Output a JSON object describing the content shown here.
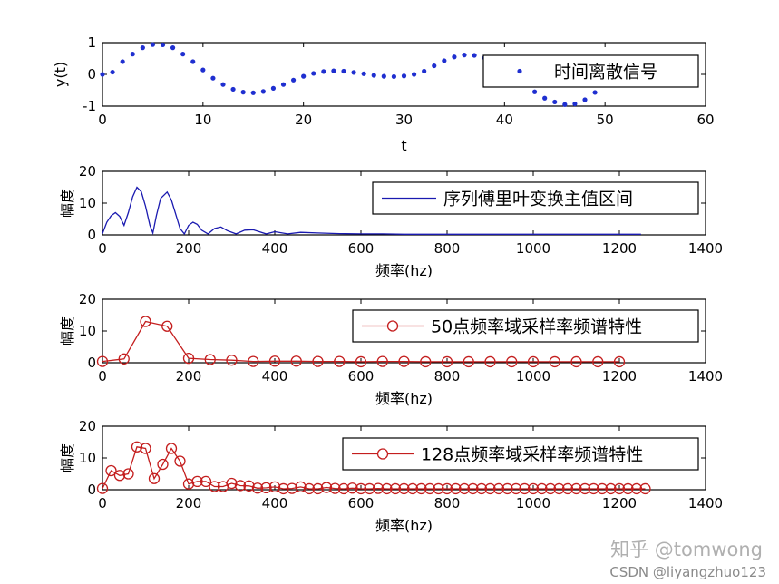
{
  "chart_data": [
    {
      "type": "scatter",
      "marker": "dot",
      "color": "#1f2fd0",
      "xlabel": "t",
      "ylabel": "y(t)",
      "xlim": [
        0,
        60
      ],
      "ylim": [
        -1,
        1
      ],
      "xticks": [
        0,
        10,
        20,
        30,
        40,
        50,
        60
      ],
      "yticks": [
        -1,
        0,
        1
      ],
      "legend": {
        "label": "时间离散信号",
        "position": "top-right"
      },
      "series": [
        {
          "name": "时间离散信号",
          "x": [
            0,
            1,
            2,
            3,
            4,
            5,
            6,
            7,
            8,
            9,
            10,
            11,
            12,
            13,
            14,
            15,
            16,
            17,
            18,
            19,
            20,
            21,
            22,
            23,
            24,
            25,
            26,
            27,
            28,
            29,
            30,
            31,
            32,
            33,
            34,
            35,
            36,
            37,
            38,
            39,
            40,
            41,
            42,
            43,
            44,
            45,
            46,
            47,
            48,
            49
          ],
          "y": [
            0.0,
            0.07,
            0.4,
            0.64,
            0.84,
            0.94,
            0.93,
            0.84,
            0.64,
            0.4,
            0.14,
            -0.12,
            -0.32,
            -0.47,
            -0.56,
            -0.58,
            -0.54,
            -0.44,
            -0.32,
            -0.18,
            -0.06,
            0.03,
            0.09,
            0.11,
            0.1,
            0.06,
            0.02,
            -0.03,
            -0.06,
            -0.07,
            -0.05,
            0.0,
            0.1,
            0.27,
            0.43,
            0.55,
            0.61,
            0.6,
            0.52,
            0.36,
            0.12,
            -0.11,
            -0.33,
            -0.55,
            -0.75,
            -0.87,
            -0.95,
            -0.93,
            -0.8,
            -0.57
          ]
        }
      ]
    },
    {
      "type": "line",
      "color": "#1a1ab0",
      "xlabel": "频率(hz)",
      "ylabel": "幅度",
      "xlim": [
        0,
        1400
      ],
      "ylim": [
        0,
        20
      ],
      "xticks": [
        0,
        200,
        400,
        600,
        800,
        1000,
        1200,
        1400
      ],
      "yticks": [
        0,
        10,
        20
      ],
      "legend": {
        "label": "序列傅里叶变换主值区间",
        "position": "top-right"
      },
      "series": [
        {
          "name": "序列傅里叶变换主值区间",
          "x": [
            0,
            10,
            20,
            30,
            40,
            50,
            60,
            70,
            80,
            90,
            100,
            110,
            117,
            125,
            135,
            150,
            160,
            170,
            180,
            190,
            200,
            210,
            220,
            230,
            245,
            260,
            275,
            290,
            310,
            330,
            350,
            380,
            400,
            430,
            460,
            500,
            550,
            600,
            650,
            700,
            800,
            900,
            1000,
            1100,
            1200,
            1250
          ],
          "y": [
            0.4,
            4,
            6,
            7,
            5.8,
            3,
            7,
            12,
            15,
            13.6,
            9,
            3,
            0.6,
            6,
            11.5,
            13.5,
            11,
            6.5,
            2,
            0.3,
            3,
            4,
            3.3,
            1.5,
            0.3,
            2,
            2.5,
            1.3,
            0.3,
            1.5,
            1.6,
            0.3,
            1,
            0.3,
            0.8,
            0.6,
            0.4,
            0.3,
            0.3,
            0.2,
            0.2,
            0.2,
            0.2,
            0.2,
            0.2,
            0.2
          ]
        }
      ]
    },
    {
      "type": "line",
      "marker": "circle",
      "color": "#c41e1e",
      "xlabel": "频率(hz)",
      "ylabel": "幅度",
      "xlim": [
        0,
        1400
      ],
      "ylim": [
        0,
        20
      ],
      "xticks": [
        0,
        200,
        400,
        600,
        800,
        1000,
        1200,
        1400
      ],
      "yticks": [
        0,
        10,
        20
      ],
      "legend": {
        "label": "50点频率域采样率频谱特性",
        "position": "top-right"
      },
      "series": [
        {
          "name": "50点频率域采样率频谱特性",
          "x": [
            0,
            50,
            100,
            150,
            200,
            250,
            300,
            350,
            400,
            450,
            500,
            550,
            600,
            650,
            700,
            750,
            800,
            850,
            900,
            950,
            1000,
            1050,
            1100,
            1150,
            1200
          ],
          "y": [
            0.4,
            1.2,
            13,
            11.5,
            1.4,
            1.0,
            0.8,
            0.4,
            0.5,
            0.5,
            0.4,
            0.4,
            0.3,
            0.4,
            0.4,
            0.3,
            0.3,
            0.3,
            0.3,
            0.3,
            0.3,
            0.3,
            0.3,
            0.3,
            0.3
          ]
        }
      ]
    },
    {
      "type": "line",
      "marker": "circle",
      "color": "#c41e1e",
      "xlabel": "频率(hz)",
      "ylabel": "幅度",
      "xlim": [
        0,
        1400
      ],
      "ylim": [
        0,
        20
      ],
      "xticks": [
        0,
        200,
        400,
        600,
        800,
        1000,
        1200,
        1400
      ],
      "yticks": [
        0,
        10,
        20
      ],
      "legend": {
        "label": "128点频率域采样率频谱特性",
        "position": "top-right"
      },
      "series": [
        {
          "name": "128点频率域采样率频谱特性",
          "x": [
            0,
            20,
            40,
            60,
            80,
            100,
            120,
            140,
            160,
            180,
            200,
            220,
            240,
            260,
            280,
            300,
            320,
            340,
            360,
            380,
            400,
            420,
            440,
            460,
            480,
            500,
            520,
            540,
            560,
            580,
            600,
            620,
            640,
            660,
            680,
            700,
            720,
            740,
            760,
            780,
            800,
            820,
            840,
            860,
            880,
            900,
            920,
            940,
            960,
            980,
            1000,
            1020,
            1040,
            1060,
            1080,
            1100,
            1120,
            1140,
            1160,
            1180,
            1200,
            1220,
            1240,
            1260
          ],
          "y": [
            0.4,
            6,
            4.5,
            5,
            13.5,
            13,
            3.5,
            8,
            13,
            9,
            1.8,
            2.6,
            2.6,
            1,
            1,
            2,
            1.3,
            1.2,
            0.5,
            0.6,
            0.9,
            0.3,
            0.4,
            0.9,
            0.3,
            0.3,
            0.7,
            0.4,
            0.3,
            0.5,
            0.3,
            0.3,
            0.4,
            0.3,
            0.3,
            0.3,
            0.3,
            0.3,
            0.3,
            0.3,
            0.3,
            0.3,
            0.3,
            0.3,
            0.3,
            0.3,
            0.3,
            0.3,
            0.3,
            0.3,
            0.3,
            0.3,
            0.3,
            0.3,
            0.3,
            0.3,
            0.3,
            0.3,
            0.3,
            0.3,
            0.3,
            0.3,
            0.3,
            0.3
          ]
        }
      ]
    }
  ],
  "watermark": {
    "line1": "知乎 @tomwong",
    "line2": "CSDN @liyangzhuo123"
  }
}
